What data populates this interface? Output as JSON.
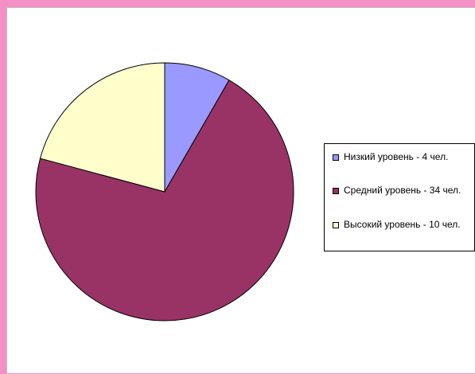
{
  "chart_data": {
    "type": "pie",
    "title": "",
    "slices": [
      {
        "label": "Низкий уровень - 4 чел.",
        "value": 4,
        "color": "#9999ff"
      },
      {
        "label": "Средний уровень - 34 чел.",
        "value": 34,
        "color": "#993366"
      },
      {
        "label": "Высокий уровень - 10 чел.",
        "value": 10,
        "color": "#ffffcc"
      }
    ],
    "legend_position": "right",
    "start_angle_deg": 0,
    "direction": "clockwise"
  },
  "colors": {
    "background": "#f490c6",
    "plot_area": "#ffffff"
  }
}
